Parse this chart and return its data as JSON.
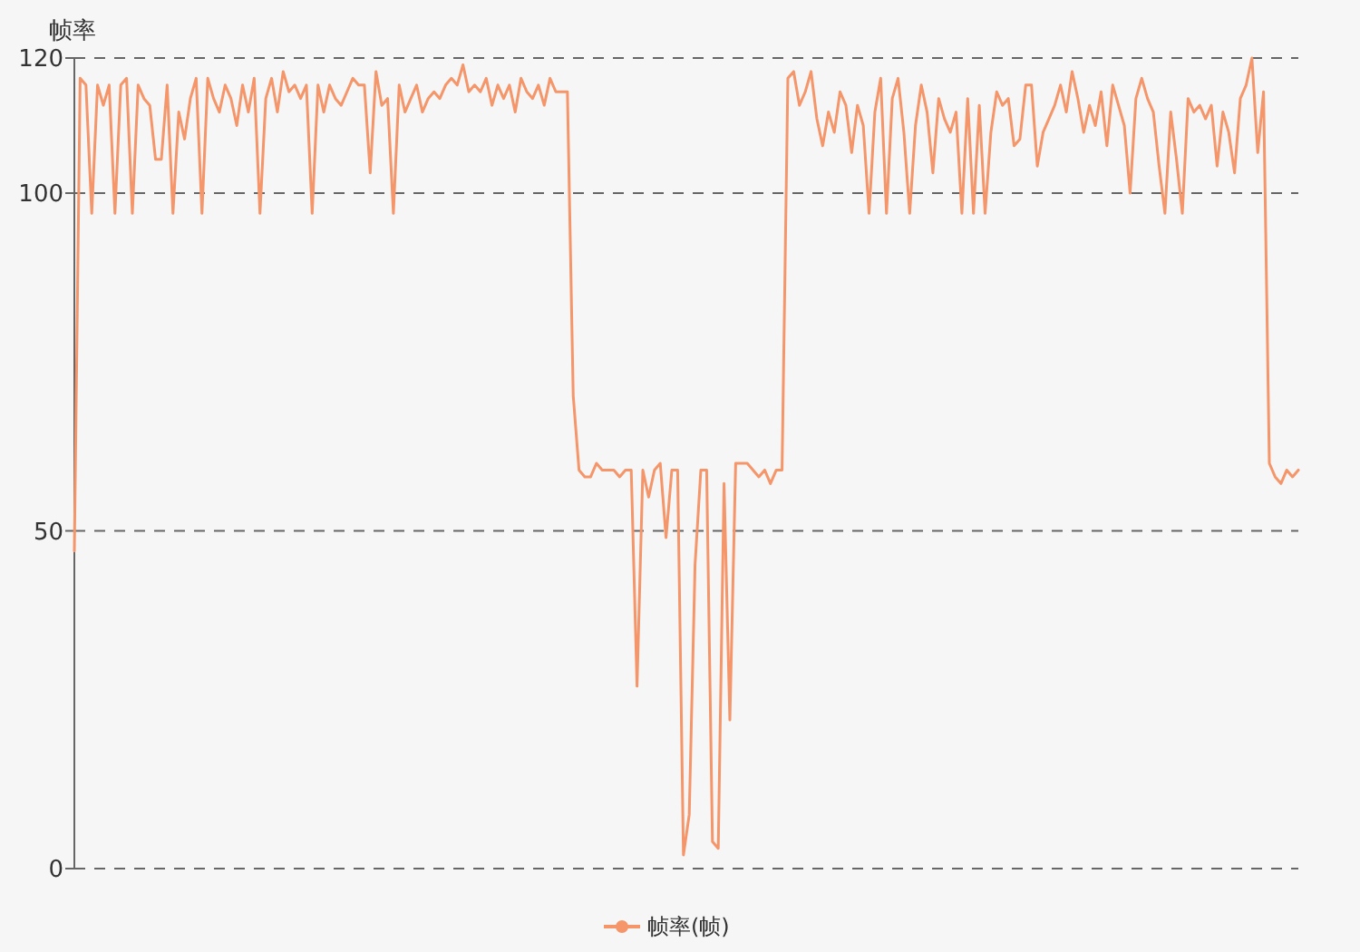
{
  "chart_data": {
    "type": "line",
    "ylabel": "帧率",
    "ylim": [
      0,
      120
    ],
    "yticks": [
      0,
      50,
      100,
      120
    ],
    "grid": "y",
    "legend": "bottom",
    "categories": [
      null,
      null,
      null,
      null,
      null,
      null,
      null,
      null,
      null,
      null,
      null,
      null,
      null,
      null,
      null,
      null,
      null,
      null,
      null,
      null,
      null,
      null,
      null,
      null,
      null,
      null,
      null,
      null,
      null,
      null,
      null,
      null,
      null,
      null,
      null,
      null,
      null,
      null,
      null,
      null,
      null,
      null,
      null,
      null,
      null,
      null,
      null,
      null,
      null,
      null,
      null,
      null,
      null,
      null,
      null,
      null,
      null,
      null,
      null,
      null,
      null,
      null,
      null,
      null,
      null,
      null,
      null,
      null,
      null,
      null,
      null,
      null,
      null,
      null,
      null,
      null,
      null,
      null,
      null,
      null,
      null,
      null,
      null,
      null,
      null,
      null,
      null,
      null,
      null,
      null,
      null,
      null,
      null,
      null,
      null,
      null,
      null,
      null,
      null,
      null,
      null,
      null,
      null,
      null,
      null,
      null,
      null,
      null,
      null,
      null,
      null,
      null,
      null,
      null,
      null,
      null,
      null,
      null,
      null,
      null,
      null,
      null,
      null,
      null,
      null,
      null,
      null,
      null,
      null,
      null,
      null,
      null,
      null,
      null,
      null,
      null,
      null,
      null,
      null,
      null,
      null,
      null,
      null,
      null,
      null,
      null,
      null,
      null,
      null,
      null,
      null,
      null,
      null,
      null,
      null,
      null,
      null,
      null,
      null,
      null,
      null,
      null,
      null,
      null,
      null,
      null,
      null,
      null,
      null,
      null,
      null,
      null,
      null,
      null,
      null,
      null,
      null,
      null,
      null,
      null,
      null,
      null,
      null,
      null,
      null,
      null,
      null,
      null,
      null,
      null,
      null,
      null,
      null,
      null,
      null,
      null,
      null,
      null,
      null,
      null,
      null,
      null,
      null,
      null,
      null,
      null,
      null,
      null,
      null,
      null,
      null,
      null
    ],
    "series": [
      {
        "name": "帧率(帧)",
        "color": "#f4956a",
        "values": [
          47,
          117,
          116,
          97,
          116,
          113,
          116,
          97,
          116,
          117,
          97,
          116,
          114,
          113,
          105,
          105,
          116,
          97,
          112,
          108,
          114,
          117,
          97,
          117,
          114,
          112,
          116,
          114,
          110,
          116,
          112,
          117,
          97,
          114,
          117,
          112,
          118,
          115,
          116,
          114,
          116,
          97,
          116,
          112,
          116,
          114,
          113,
          115,
          117,
          116,
          116,
          103,
          118,
          113,
          114,
          97,
          116,
          112,
          114,
          116,
          112,
          114,
          115,
          114,
          116,
          117,
          116,
          119,
          115,
          116,
          115,
          117,
          113,
          116,
          114,
          116,
          112,
          117,
          115,
          114,
          116,
          113,
          117,
          115,
          115,
          115,
          70,
          59,
          58,
          58,
          60,
          59,
          59,
          59,
          58,
          59,
          59,
          27,
          59,
          55,
          59,
          60,
          49,
          59,
          59,
          2,
          8,
          45,
          59,
          59,
          4,
          3,
          57,
          22,
          60,
          60,
          60,
          59,
          58,
          59,
          57,
          59,
          59,
          117,
          118,
          113,
          115,
          118,
          111,
          107,
          112,
          109,
          115,
          113,
          106,
          113,
          110,
          97,
          112,
          117,
          97,
          114,
          117,
          109,
          97,
          110,
          116,
          112,
          103,
          114,
          111,
          109,
          112,
          97,
          114,
          97,
          113,
          97,
          109,
          115,
          113,
          114,
          107,
          108,
          116,
          116,
          104,
          109,
          111,
          113,
          116,
          112,
          118,
          114,
          109,
          113,
          110,
          115,
          107,
          116,
          113,
          110,
          100,
          114,
          117,
          114,
          112,
          104,
          97,
          112,
          105,
          97,
          114,
          112,
          113,
          111,
          113,
          104,
          112,
          109,
          103,
          114,
          116,
          120,
          106,
          115,
          60,
          58,
          57,
          59,
          58,
          59
        ]
      }
    ]
  }
}
